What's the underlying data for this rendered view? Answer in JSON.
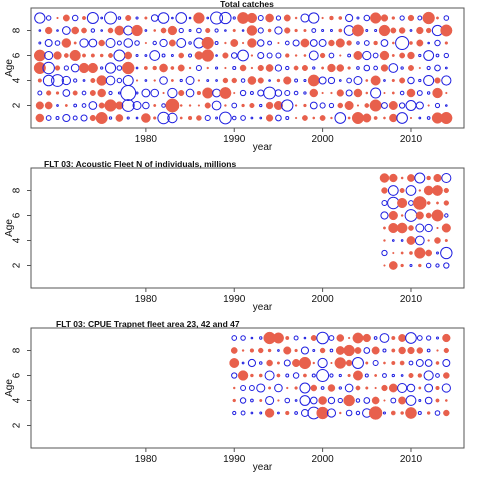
{
  "chart_data": [
    {
      "type": "scatter",
      "title": "Total catches",
      "xlabel": "year",
      "ylabel": "Age",
      "xlim": [
        1967,
        2016
      ],
      "ylim": [
        0.2,
        9.8
      ],
      "xticks": [
        1980,
        1990,
        2000,
        2010
      ],
      "yticks": [
        2,
        4,
        6,
        8
      ],
      "years": [
        1968,
        2014
      ],
      "ages": [
        1,
        9
      ],
      "note": "bubble residual plot: blue open circles = negative, red filled = positive"
    },
    {
      "type": "scatter",
      "title": "FLT 03: Acoustic Fleet   N of individuals, millions",
      "xlabel": "year",
      "ylabel": "Age",
      "xlim": [
        1967,
        2016
      ],
      "ylim": [
        0.2,
        9.8
      ],
      "xticks": [
        1980,
        1990,
        2000,
        2010
      ],
      "yticks": [
        2,
        4,
        6,
        8
      ],
      "years": [
        2007,
        2014
      ],
      "ages": [
        2,
        9
      ],
      "note": "bubble residual plot: blue open circles = negative, red filled = positive"
    },
    {
      "type": "scatter",
      "title": "FLT 03: CPUE Trapnet fleet area 23, 42 and 47",
      "xlabel": "year",
      "ylabel": "Age",
      "xlim": [
        1967,
        2016
      ],
      "ylim": [
        0.2,
        9.8
      ],
      "xticks": [
        1980,
        1990,
        2000,
        2010
      ],
      "yticks": [
        2,
        4,
        6,
        8
      ],
      "years": [
        1990,
        2014
      ],
      "ages": [
        3,
        9
      ],
      "note": "bubble residual plot: blue open circles = negative, red filled = positive"
    }
  ],
  "colors": {
    "positive": "#e8604c",
    "negative": "#1f1fe0",
    "frame": "#555555",
    "text": "#111111"
  }
}
